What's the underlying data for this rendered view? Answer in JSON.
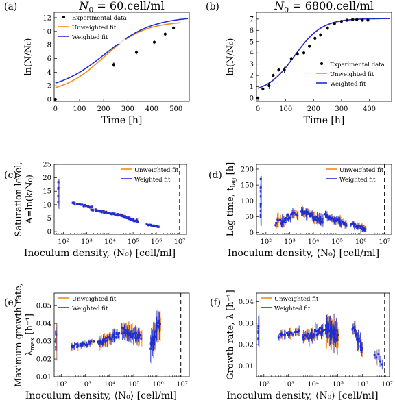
{
  "colors": {
    "unweighted": "#f28c1e",
    "weighted": "#1f2fd0",
    "data": "#000000",
    "dashed": "#000000"
  },
  "chart_data": [
    {
      "panel": "(a)",
      "type": "scatter",
      "title": "N₀ = 60.cell/ml",
      "xlabel": "Time [h]",
      "ylabel": "ln(N/N₀)",
      "xlim": [
        -5,
        555
      ],
      "ylim": [
        -0.3,
        12.8
      ],
      "xticks": [
        0,
        100,
        200,
        300,
        400,
        500
      ],
      "yticks": [
        0,
        2,
        4,
        6,
        8,
        10,
        12
      ],
      "legend": [
        "Experimental data",
        "Unweighted fit",
        "Weighted fit"
      ],
      "legend_position": "top-left",
      "experimental": {
        "x": [
          0,
          242,
          336,
          410,
          455,
          490
        ],
        "y": [
          0,
          5.1,
          6.9,
          8.4,
          9.6,
          10.5
        ],
        "err": [
          0.15,
          0.35,
          0.3,
          0.25,
          0.25,
          0.2
        ]
      },
      "unweighted_fit": {
        "A": 11.5,
        "mu": 0.034,
        "lag": 30,
        "y0": 0.8,
        "xrange": [
          0,
          520
        ]
      },
      "weighted_fit": {
        "A": 12.2,
        "mu": 0.031,
        "lag": 10,
        "y0": 1.2,
        "xrange": [
          0,
          550
        ]
      }
    },
    {
      "panel": "(b)",
      "type": "scatter",
      "title": "N₀ = 6800.cell/ml",
      "xlabel": "Time [h]",
      "ylabel": "ln(N/N₀)",
      "xlim": [
        -5,
        480
      ],
      "ylim": [
        -0.3,
        7.6
      ],
      "xticks": [
        0,
        100,
        200,
        300,
        400
      ],
      "yticks": [
        0,
        1,
        2,
        3,
        4,
        5,
        6,
        7
      ],
      "legend": [
        "Experimental data",
        "Unweighted fit",
        "Weighted fit"
      ],
      "legend_position": "bottom-right",
      "experimental": {
        "x": [
          0,
          18,
          40,
          55,
          75,
          95,
          120,
          142,
          165,
          185,
          205,
          225,
          250,
          275,
          300,
          320,
          340,
          355,
          375,
          395
        ],
        "y": [
          0,
          0.8,
          1.1,
          2.0,
          2.5,
          2.5,
          3.5,
          3.9,
          4.0,
          4.6,
          5.3,
          5.6,
          6.2,
          6.6,
          6.8,
          6.9,
          6.95,
          6.95,
          6.9,
          6.9
        ],
        "err": [
          0.15,
          0.15,
          0.3,
          0.15,
          0.15,
          0.25,
          0.15,
          0.15,
          0.15,
          0.15,
          0.15,
          0.15,
          0.15,
          0.15,
          0.1,
          0.1,
          0.1,
          0.1,
          0.1,
          0.1
        ]
      },
      "unweighted_fit": {
        "A": 7.05,
        "mu": 0.036,
        "lag": 34,
        "y0": 0.45,
        "xrange": [
          0,
          475
        ]
      },
      "weighted_fit": {
        "A": 7.05,
        "mu": 0.036,
        "lag": 34,
        "y0": 0.45,
        "xrange": [
          0,
          475
        ]
      }
    },
    {
      "panel": "(c)",
      "type": "scatter",
      "xscale": "log",
      "xlabel": "Inoculum density, ⟨N₀⟩ [cell/ml]",
      "ylabel": "Saturation level,",
      "ylabel2": "A=ln(k/N₀)",
      "xlim_log10": [
        1.6,
        7.3
      ],
      "ylim": [
        -1,
        25
      ],
      "xticks_labels": [
        "10²",
        "10³",
        "10⁴",
        "10⁵",
        "10⁶",
        "10⁷"
      ],
      "yticks": [
        0,
        5,
        10,
        15,
        20,
        25
      ],
      "legend": [
        "Unweighted fit",
        "Weighted fit"
      ],
      "legend_position": "top-right",
      "dashed_line_x_log10": 7.0,
      "segments": [
        {
          "log10_range": [
            1.78,
            1.8
          ],
          "n": 7,
          "y_start": 11,
          "y_end": 18,
          "err": 3.0
        },
        {
          "log10_range": [
            2.4,
            3.2
          ],
          "n": 16,
          "y_start": 10.8,
          "y_end": 9.0,
          "err": 0.6
        },
        {
          "log10_range": [
            3.2,
            4.5
          ],
          "n": 38,
          "y_start": 8.2,
          "y_end": 6.0,
          "err": 0.5
        },
        {
          "log10_range": [
            4.5,
            5.2
          ],
          "n": 28,
          "y_start": 5.8,
          "y_end": 3.8,
          "err": 0.6
        },
        {
          "log10_range": [
            5.6,
            6.1
          ],
          "n": 16,
          "y_start": 2.6,
          "y_end": 1.8,
          "err": 0.4
        }
      ]
    },
    {
      "panel": "(d)",
      "type": "scatter",
      "xscale": "log",
      "xlabel": "Inoculum density, ⟨N₀⟩ [cell/ml]",
      "ylabel": "Lag time, t",
      "ylabel_sub": "lag",
      "ylabel_unit": " [h]",
      "xlim_log10": [
        1.6,
        7.3
      ],
      "ylim": [
        -5,
        215
      ],
      "xticks_labels": [
        "10²",
        "10³",
        "10⁴",
        "10⁵",
        "10⁶",
        "10⁷"
      ],
      "yticks": [
        0,
        50,
        100,
        150,
        200
      ],
      "legend": [
        "Unweighted fit",
        "Weighted fit"
      ],
      "legend_position": "top-right",
      "dashed_line_x_log10": 7.0,
      "segments": [
        {
          "log10_range": [
            1.78,
            1.8
          ],
          "n": 10,
          "y_start": 40,
          "y_end": 170,
          "err": 30
        },
        {
          "log10_range": [
            2.4,
            3.3
          ],
          "n": 22,
          "y_start": 30,
          "y_end": 60,
          "err": 18
        },
        {
          "log10_range": [
            3.5,
            4.4
          ],
          "n": 40,
          "y_start": 70,
          "y_end": 35,
          "err": 15
        },
        {
          "log10_range": [
            4.5,
            5.4
          ],
          "n": 36,
          "y_start": 55,
          "y_end": 25,
          "err": 12
        },
        {
          "log10_range": [
            5.6,
            6.2
          ],
          "n": 18,
          "y_start": 28,
          "y_end": 10,
          "err": 10
        }
      ]
    },
    {
      "panel": "(e)",
      "type": "scatter",
      "xscale": "log",
      "xlabel": "Inoculum density, ⟨N₀⟩ [cell/ml]",
      "ylabel": "Maximum growth rate,",
      "ylabel2": "λ",
      "ylabel2_sub": "max",
      "ylabel2_unit": " [h⁻¹]",
      "xlim_log10": [
        1.7,
        7.3
      ],
      "ylim": [
        0.01,
        0.057
      ],
      "xticks_labels": [
        "10²",
        "10³",
        "10⁴",
        "10⁵",
        "10⁶",
        "10⁷"
      ],
      "yticks": [
        0.01,
        0.02,
        0.03,
        0.04,
        0.05
      ],
      "legend": [
        "Unweighted fit",
        "Weighted fit"
      ],
      "legend_position": "top-left",
      "dashed_line_x_log10": 6.95,
      "segments": [
        {
          "log10_range": [
            1.78,
            1.8
          ],
          "n": 8,
          "y_start": 0.024,
          "y_end": 0.036,
          "err": 0.006
        },
        {
          "log10_range": [
            2.4,
            3.3
          ],
          "n": 20,
          "y_start": 0.027,
          "y_end": 0.029,
          "err": 0.002
        },
        {
          "log10_range": [
            3.5,
            4.4
          ],
          "n": 32,
          "y_start": 0.029,
          "y_end": 0.034,
          "err": 0.003
        },
        {
          "log10_range": [
            4.5,
            5.3
          ],
          "n": 36,
          "y_start": 0.036,
          "y_end": 0.032,
          "err": 0.004
        },
        {
          "log10_range": [
            5.7,
            6.1
          ],
          "n": 20,
          "y_start": 0.028,
          "y_end": 0.042,
          "err": 0.007
        }
      ]
    },
    {
      "panel": "(f)",
      "type": "scatter",
      "xscale": "log",
      "xlabel": "Inoculum density, ⟨N₀⟩ [cell/ml]",
      "ylabel": "Growth rate, λ [h⁻¹]",
      "xlim_log10": [
        1.7,
        7.1
      ],
      "ylim": [
        0.005,
        0.044
      ],
      "xticks_labels": [
        "10²",
        "10³",
        "10⁴",
        "10⁵",
        "10⁶",
        "10⁷"
      ],
      "yticks": [
        0.01,
        0.02,
        0.03,
        0.04
      ],
      "legend": [
        "Unweighted fit",
        "Weighted fit"
      ],
      "legend_position": "top-left",
      "dashed_line_x_log10": 6.9,
      "segments": [
        {
          "log10_range": [
            1.78,
            1.8
          ],
          "n": 8,
          "y_start": 0.022,
          "y_end": 0.028,
          "err": 0.004
        },
        {
          "log10_range": [
            2.6,
            3.4
          ],
          "n": 16,
          "y_start": 0.024,
          "y_end": 0.026,
          "err": 0.002
        },
        {
          "log10_range": [
            3.6,
            4.4
          ],
          "n": 32,
          "y_start": 0.023,
          "y_end": 0.027,
          "err": 0.003
        },
        {
          "log10_range": [
            4.5,
            5.0
          ],
          "n": 34,
          "y_start": 0.028,
          "y_end": 0.024,
          "err": 0.006
        },
        {
          "log10_range": [
            5.6,
            6.0
          ],
          "n": 14,
          "y_start": 0.028,
          "y_end": 0.018,
          "err": 0.004
        },
        {
          "log10_range": [
            6.5,
            6.8
          ],
          "n": 5,
          "y_start": 0.016,
          "y_end": 0.012,
          "err": 0.003
        }
      ]
    }
  ]
}
